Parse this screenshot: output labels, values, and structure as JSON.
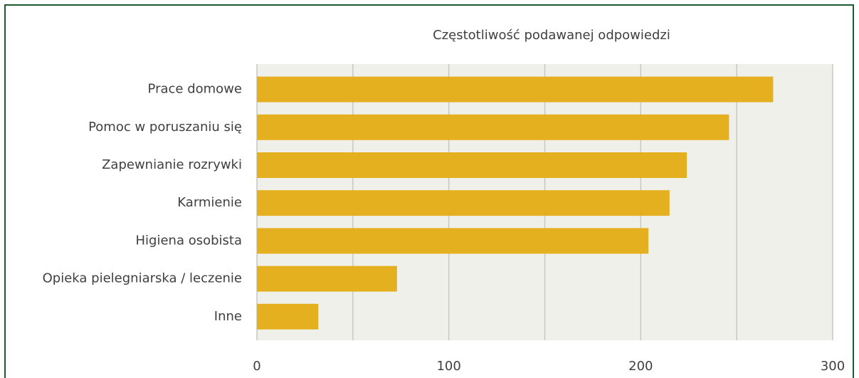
{
  "chart_data": {
    "type": "hbar",
    "title": "Częstotliwość podawanej odpowiedzi",
    "categories": [
      "Prace domowe",
      "Pomoc w poruszaniu się",
      "Zapewnianie rozrywki",
      "Karmienie",
      "Higiena osobista",
      "Opieka pielegniarska / leczenie",
      "Inne"
    ],
    "values": [
      269,
      246,
      224,
      215,
      204,
      73,
      32
    ],
    "color": "#e5b020",
    "xlim": [
      0,
      300
    ],
    "xticks": [
      0,
      100,
      200,
      300
    ],
    "minor_xticks": [
      50,
      150,
      250
    ],
    "grid": true
  }
}
